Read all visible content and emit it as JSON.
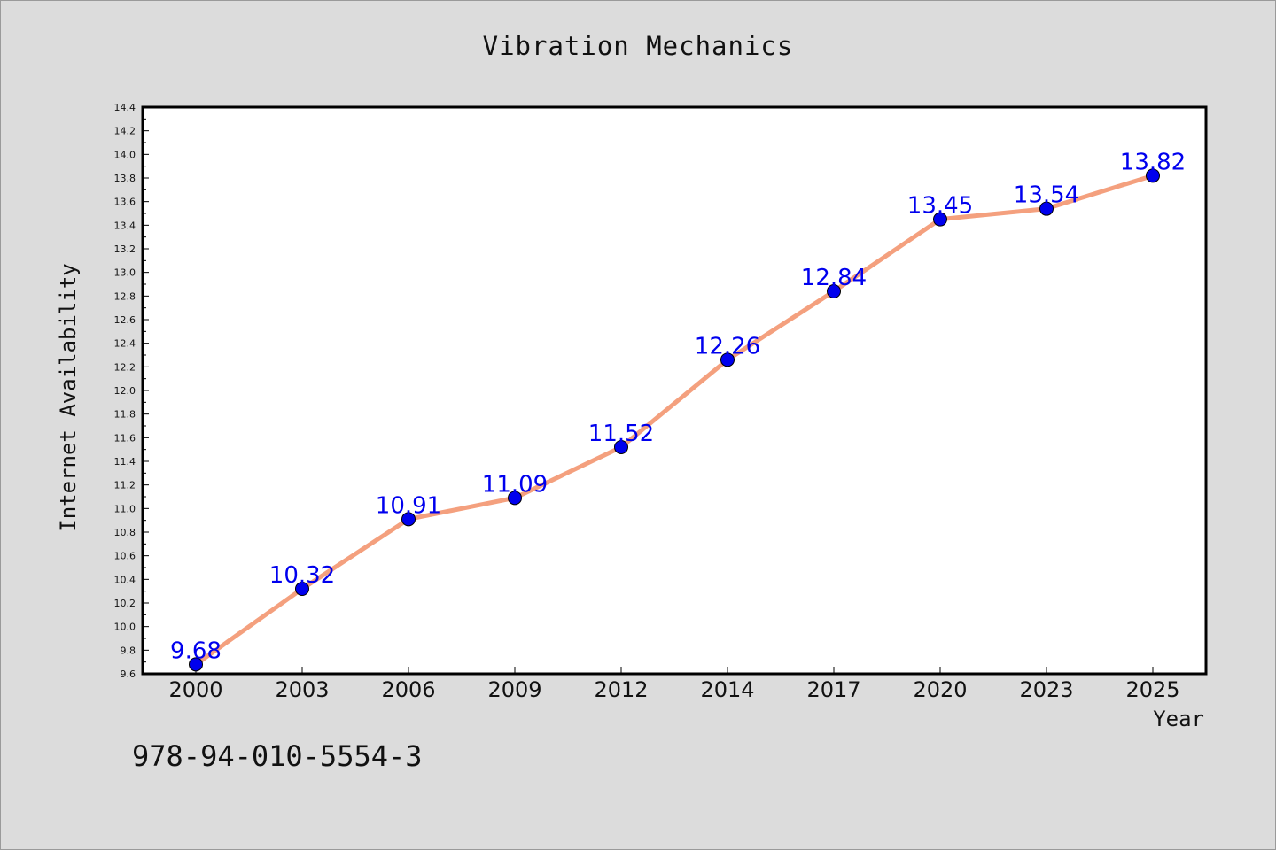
{
  "figure": {
    "title": "Vibration Mechanics",
    "footer_code": "978-94-010-5554-3"
  },
  "chart_data": {
    "type": "line",
    "title": "Vibration Mechanics",
    "xlabel": "Year",
    "ylabel": "Internet Availability",
    "categories": [
      "2000",
      "2003",
      "2006",
      "2009",
      "2012",
      "2014",
      "2017",
      "2020",
      "2023",
      "2025"
    ],
    "series": [
      {
        "values": [
          9.68,
          10.32,
          10.91,
          11.09,
          11.52,
          12.26,
          12.84,
          13.45,
          13.54,
          13.82
        ],
        "labels": [
          "9.68",
          "10.32",
          "10.91",
          "11.09",
          "11.52",
          "12.26",
          "12.84",
          "13.45",
          "13.54",
          "13.82"
        ],
        "line_color": "#f4a07e",
        "marker_color": "#0000ee",
        "label_color": "#0000ee"
      }
    ],
    "ylim": [
      9.6,
      14.4
    ],
    "yticks": [
      "9.6",
      "9.8",
      "10.0",
      "10.2",
      "10.4",
      "10.6",
      "10.8",
      "11.0",
      "11.2",
      "11.4",
      "11.6",
      "11.8",
      "12.0",
      "12.2",
      "12.4",
      "12.6",
      "12.8",
      "13.0",
      "13.2",
      "13.4",
      "13.6",
      "13.8",
      "14.0",
      "14.2",
      "14.4"
    ],
    "grid": false,
    "legend": "none"
  }
}
